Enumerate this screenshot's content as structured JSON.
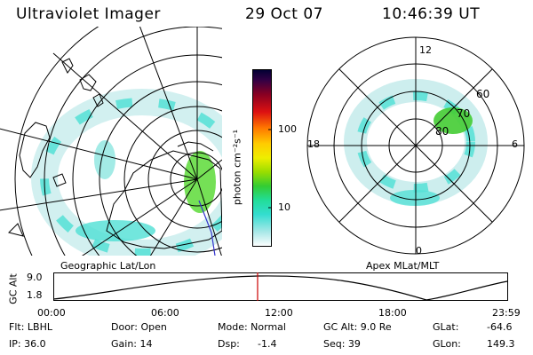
{
  "header": {
    "instrument": "Ultraviolet Imager",
    "date": "29 Oct 07",
    "time": "10:46:39 UT"
  },
  "colorbar": {
    "unit_label": "photon cm⁻²s⁻¹",
    "ticks": [
      {
        "label": "100",
        "value": 100
      },
      {
        "label": "10",
        "value": 10
      }
    ]
  },
  "panels": {
    "left_label": "Geographic Lat/Lon",
    "right_label": "Apex MLat/MLT",
    "mlt_labels": [
      {
        "label": "12",
        "mlt": 12
      },
      {
        "label": "18",
        "mlt": 18
      },
      {
        "label": "6",
        "mlt": 6
      },
      {
        "label": "0",
        "mlt": 0
      }
    ],
    "mlat_labels": [
      {
        "label": "60",
        "mlat": 60
      },
      {
        "label": "70",
        "mlat": 70
      },
      {
        "label": "80",
        "mlat": 80
      }
    ]
  },
  "timeline": {
    "ylabel": "GC Alt",
    "yticks": [
      "9.0",
      "1.8"
    ],
    "xticks": [
      "00:00",
      "06:00",
      "12:00",
      "18:00",
      "23:59"
    ],
    "current_marker_hours": 10.78,
    "marker_color": "#cc0000"
  },
  "footer": {
    "flt": "Flt: LBHL",
    "ip": "IP: 36.0",
    "door": "Door: Open",
    "gain": "Gain: 14",
    "mode": "Mode: Normal",
    "dsp_label": "Dsp:",
    "dsp_value": "-1.4",
    "gc_alt": "GC Alt: 9.0 Re",
    "seq": "Seq: 39",
    "glat_label": "GLat:",
    "glat_value": "-64.6",
    "glon_label": "GLon:",
    "glon_value": "149.3"
  },
  "colors": {
    "oval_light": "#bde6e6",
    "oval_cyan": "#33ddd0",
    "oval_green": "#22bb22",
    "cross_track": "#3333cc"
  }
}
